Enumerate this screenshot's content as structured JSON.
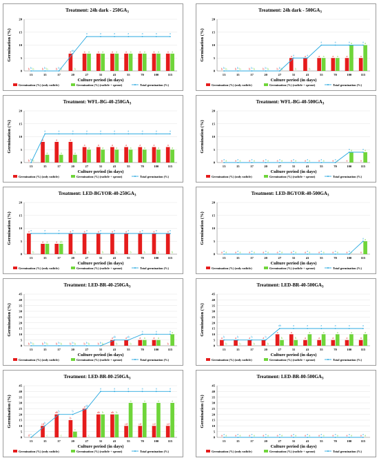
{
  "legend": [
    "Germination (%) (only radicle)",
    "Germination (%) (radicle + sprout)",
    "Total germination (%)"
  ],
  "colors": {
    "radicle": "#e51c1c",
    "sprout": "#6fd53a",
    "total": "#2aa9e0"
  },
  "chart_data": [
    {
      "type": "bar",
      "title": "Treatment: 24h dark - 250GA3",
      "xlabel": "Culture period (in days)",
      "ylabel": "Germination (%)",
      "ylim": [
        0,
        20
      ],
      "yticks": [
        0,
        5,
        10,
        15,
        20
      ],
      "categories": [
        "13",
        "15",
        "17",
        "20",
        "27",
        "31",
        "41",
        "55",
        "70",
        "100",
        "115"
      ],
      "series": [
        {
          "name": "Germination (%) (only radicle)",
          "values": [
            0,
            0,
            0,
            6.7,
            6.7,
            6.7,
            6.7,
            6.7,
            6.7,
            6.7,
            6.7
          ]
        },
        {
          "name": "Germination (%) (radicle + sprout)",
          "values": [
            0,
            0,
            0,
            0,
            6.7,
            6.7,
            6.7,
            6.7,
            6.7,
            6.7,
            6.7
          ]
        },
        {
          "name": "Total germination (%)",
          "values": [
            0,
            0,
            0,
            6.7,
            13.3,
            13.3,
            13.3,
            13.3,
            13.3,
            13.3,
            13.3
          ]
        }
      ],
      "labels_radicle": [
        "b",
        "b",
        "b",
        "a",
        "a",
        "a",
        "a",
        "a",
        "a",
        "a",
        "a"
      ],
      "labels_sprout": [
        "b",
        "b",
        "b",
        "b",
        "a",
        "a",
        "a",
        "a",
        "a",
        "a",
        "a"
      ],
      "labels_total": [
        "b",
        "b",
        "b",
        "ab",
        "a",
        "a",
        "a",
        "a",
        "a",
        "a",
        "a"
      ]
    },
    {
      "type": "bar",
      "title": "Treatment: 24h dark - 500GA3",
      "xlabel": "Culture period (in days)",
      "ylabel": "Germination (%)",
      "ylim": [
        0,
        20
      ],
      "yticks": [
        0,
        5,
        10,
        15,
        20
      ],
      "categories": [
        "13",
        "15",
        "17",
        "20",
        "27",
        "31",
        "41",
        "55",
        "70",
        "100",
        "115"
      ],
      "series": [
        {
          "name": "Germination (%) (only radicle)",
          "values": [
            0,
            0,
            0,
            0,
            0,
            5,
            5,
            5,
            5,
            5,
            5
          ]
        },
        {
          "name": "Germination (%) (radicle + sprout)",
          "values": [
            0,
            0,
            0,
            0,
            0,
            0,
            0,
            5,
            5,
            10,
            10
          ]
        },
        {
          "name": "Total germination (%)",
          "values": [
            0,
            0,
            0,
            0,
            0,
            5,
            5,
            10,
            10,
            10,
            10
          ]
        }
      ],
      "labels_radicle": [
        "b",
        "b",
        "b",
        "b",
        "b",
        "a",
        "a",
        "a",
        "a",
        "a",
        "a"
      ],
      "labels_sprout": [
        "b",
        "b",
        "b",
        "b",
        "b",
        "b",
        "b",
        "a",
        "a",
        "a",
        "a"
      ],
      "labels_total": [
        "b",
        "b",
        "b",
        "b",
        "b",
        "a",
        "a",
        "a",
        "a",
        "a",
        "a"
      ]
    },
    {
      "type": "bar",
      "title": "Treatment: WFL-BG-40-250GA3",
      "xlabel": "Culture period (in days)",
      "ylabel": "Germination (%)",
      "ylim": [
        0,
        20
      ],
      "yticks": [
        0,
        5,
        10,
        15,
        20
      ],
      "categories": [
        "13",
        "15",
        "17",
        "20",
        "27",
        "31",
        "41",
        "55",
        "70",
        "100",
        "115"
      ],
      "series": [
        {
          "name": "Germination (%) (only radicle)",
          "values": [
            0,
            8,
            8,
            8,
            6,
            6,
            6,
            6,
            6,
            6,
            6
          ]
        },
        {
          "name": "Germination (%) (radicle + sprout)",
          "values": [
            0,
            3,
            3,
            3,
            5,
            5,
            5,
            5,
            5,
            5,
            5
          ]
        },
        {
          "name": "Total germination (%)",
          "values": [
            0,
            11.1,
            11.1,
            11.1,
            11.1,
            11.1,
            11.1,
            11.1,
            11.1,
            11.1,
            11.1
          ]
        }
      ],
      "labels_radicle": [
        "b",
        "a",
        "a",
        "a",
        "a",
        "a",
        "a",
        "a",
        "a",
        "a",
        "a"
      ],
      "labels_sprout": [
        "b",
        "a",
        "a",
        "a",
        "a",
        "a",
        "a",
        "a",
        "a",
        "a",
        "a"
      ],
      "labels_total": [
        "b",
        "a",
        "a",
        "a",
        "a",
        "a",
        "a",
        "a",
        "a",
        "a",
        "a"
      ]
    },
    {
      "type": "bar",
      "title": "Treatment: WFL-BG-40-500GA3",
      "xlabel": "Culture period (in days)",
      "ylabel": "Germination (%)",
      "ylim": [
        0,
        20
      ],
      "yticks": [
        0,
        5,
        10,
        15,
        20
      ],
      "categories": [
        "13",
        "15",
        "17",
        "20",
        "27",
        "31",
        "41",
        "55",
        "70",
        "100",
        "115"
      ],
      "series": [
        {
          "name": "Germination (%) (only radicle)",
          "values": [
            0,
            0,
            0,
            0,
            0,
            0,
            0,
            0,
            0,
            0,
            0
          ]
        },
        {
          "name": "Germination (%) (radicle + sprout)",
          "values": [
            0,
            0,
            0,
            0,
            0,
            0,
            0,
            0,
            0,
            4,
            4
          ]
        },
        {
          "name": "Total germination (%)",
          "values": [
            0,
            0,
            0,
            0,
            0,
            0,
            0,
            0,
            0,
            4,
            4
          ]
        }
      ],
      "labels_radicle": [
        "a",
        "a",
        "a",
        "a",
        "a",
        "a",
        "a",
        "a",
        "a",
        "a",
        "a"
      ],
      "labels_sprout": [
        "a",
        "a",
        "a",
        "a",
        "a",
        "a",
        "a",
        "a",
        "a",
        "a",
        "a"
      ],
      "labels_total": [
        "a",
        "a",
        "a",
        "a",
        "a",
        "a",
        "a",
        "a",
        "a",
        "a",
        "a"
      ]
    },
    {
      "type": "bar",
      "title": "Treatment: LED-BGYOR-40-250GA3",
      "xlabel": "Culture period (in days)",
      "ylabel": "Germination (%)",
      "ylim": [
        0,
        20
      ],
      "yticks": [
        0,
        5,
        10,
        15,
        20
      ],
      "categories": [
        "13",
        "15",
        "17",
        "20",
        "27",
        "31",
        "41",
        "55",
        "70",
        "100",
        "115"
      ],
      "series": [
        {
          "name": "Germination (%) (only radicle)",
          "values": [
            8,
            4,
            4,
            8,
            8,
            8,
            8,
            8,
            8,
            8,
            8
          ]
        },
        {
          "name": "Germination (%) (radicle + sprout)",
          "values": [
            0,
            4,
            4,
            0,
            0,
            0,
            0,
            0,
            0,
            0,
            0
          ]
        },
        {
          "name": "Total germination (%)",
          "values": [
            8,
            8,
            8,
            8,
            8,
            8,
            8,
            8,
            8,
            8,
            8
          ]
        }
      ],
      "labels_radicle": [
        "a",
        "a",
        "a",
        "a",
        "a",
        "a",
        "a",
        "a",
        "a",
        "a",
        "a"
      ],
      "labels_sprout": [
        "b",
        "a",
        "ab",
        "b",
        "b",
        "b",
        "b",
        "b",
        "b",
        "b",
        "b"
      ],
      "labels_total": [
        "a",
        "a",
        "a",
        "a",
        "a",
        "a",
        "a",
        "a",
        "a",
        "a",
        "a"
      ]
    },
    {
      "type": "bar",
      "title": "Treatment: LED-BGYOR-40-500GA3",
      "xlabel": "Culture period (in days)",
      "ylabel": "Germination (%)",
      "ylim": [
        0,
        20
      ],
      "yticks": [
        0,
        5,
        10,
        15,
        20
      ],
      "categories": [
        "13",
        "15",
        "17",
        "20",
        "27",
        "31",
        "41",
        "55",
        "70",
        "100",
        "115"
      ],
      "series": [
        {
          "name": "Germination (%) (only radicle)",
          "values": [
            0,
            0,
            0,
            0,
            0,
            0,
            0,
            0,
            0,
            0,
            0
          ]
        },
        {
          "name": "Germination (%) (radicle + sprout)",
          "values": [
            0,
            0,
            0,
            0,
            0,
            0,
            0,
            0,
            0,
            0,
            5
          ]
        },
        {
          "name": "Total germination (%)",
          "values": [
            0,
            0,
            0,
            0,
            0,
            0,
            0,
            0,
            0,
            0,
            5
          ]
        }
      ],
      "labels_radicle": [
        "a",
        "a",
        "a",
        "a",
        "a",
        "a",
        "a",
        "a",
        "a",
        "a",
        "a"
      ],
      "labels_sprout": [
        "a",
        "a",
        "a",
        "a",
        "a",
        "a",
        "a",
        "a",
        "a",
        "a",
        "a"
      ],
      "labels_total": [
        "a",
        "a",
        "a",
        "a",
        "a",
        "a",
        "a",
        "a",
        "a",
        "a",
        "a"
      ]
    },
    {
      "type": "bar",
      "title": "Treatment: LED-BR-40-250GA3",
      "xlabel": "Culture period (in days)",
      "ylabel": "Germination (%)",
      "ylim": [
        0,
        45
      ],
      "yticks": [
        0,
        5,
        10,
        15,
        20,
        25,
        30,
        35,
        40,
        45
      ],
      "categories": [
        "13",
        "15",
        "17",
        "20",
        "27",
        "31",
        "41",
        "55",
        "70",
        "100",
        "115"
      ],
      "series": [
        {
          "name": "Germination (%) (only radicle)",
          "values": [
            0,
            0,
            0,
            0,
            0,
            0,
            5,
            5,
            5,
            5,
            0
          ]
        },
        {
          "name": "Germination (%) (radicle + sprout)",
          "values": [
            0,
            0,
            0,
            0,
            0,
            0,
            0,
            0,
            5,
            5,
            10
          ]
        },
        {
          "name": "Total germination (%)",
          "values": [
            0,
            0,
            0,
            0,
            0,
            0,
            5,
            5,
            10,
            10,
            10
          ]
        }
      ],
      "labels_radicle": [
        "b",
        "b",
        "b",
        "b",
        "b",
        "b",
        "a",
        "a",
        "a",
        "a",
        "b"
      ],
      "labels_sprout": [
        "b",
        "b",
        "b",
        "b",
        "b",
        "b",
        "b",
        "b",
        "a",
        "a",
        "a"
      ],
      "labels_total": [
        "b",
        "b",
        "b",
        "b",
        "b",
        "b",
        "ab",
        "ab",
        "a",
        "a",
        "a"
      ]
    },
    {
      "type": "bar",
      "title": "Treatment: LED-BR-40-500GA3",
      "xlabel": "Culture period (in days)",
      "ylabel": "Germination (%)",
      "ylim": [
        0,
        45
      ],
      "yticks": [
        0,
        5,
        10,
        15,
        20,
        25,
        30,
        35,
        40,
        45
      ],
      "categories": [
        "13",
        "15",
        "17",
        "20",
        "27",
        "31",
        "41",
        "55",
        "70",
        "100",
        "115"
      ],
      "series": [
        {
          "name": "Germination (%) (only radicle)",
          "values": [
            5,
            5,
            5,
            5,
            10,
            10,
            5,
            5,
            5,
            5,
            5
          ]
        },
        {
          "name": "Germination (%) (radicle + sprout)",
          "values": [
            0,
            0,
            0,
            0,
            5,
            5,
            10,
            10,
            10,
            10,
            10
          ]
        },
        {
          "name": "Total germination (%)",
          "values": [
            5,
            5,
            5,
            5,
            15,
            15,
            15,
            15,
            15,
            15,
            15
          ]
        }
      ],
      "labels_radicle": [
        "a",
        "a",
        "a",
        "a",
        "a",
        "a",
        "a",
        "a",
        "a",
        "a",
        "a"
      ],
      "labels_sprout": [
        "b",
        "b",
        "b",
        "b",
        "b",
        "b",
        "a",
        "a",
        "a",
        "a",
        "a"
      ],
      "labels_total": [
        "b",
        "b",
        "b",
        "b",
        "ab",
        "a",
        "a",
        "a",
        "a",
        "a",
        "a"
      ]
    },
    {
      "type": "bar",
      "title": "Treatment: LED-BR-80-250GA3",
      "xlabel": "Culture period (in days)",
      "ylabel": "Germination (%)",
      "ylim": [
        0,
        45
      ],
      "yticks": [
        0,
        5,
        10,
        15,
        20,
        25,
        30,
        35,
        40,
        45
      ],
      "categories": [
        "13",
        "15",
        "17",
        "20",
        "27",
        "31",
        "41",
        "55",
        "70",
        "100",
        "115"
      ],
      "series": [
        {
          "name": "Germination (%) (only radicle)",
          "values": [
            0,
            10,
            20,
            15,
            25,
            20,
            20,
            10,
            10,
            10,
            10
          ]
        },
        {
          "name": "Germination (%) (radicle + sprout)",
          "values": [
            0,
            0,
            0,
            5,
            0,
            20,
            20,
            30,
            30,
            30,
            30
          ]
        },
        {
          "name": "Total germination (%)",
          "values": [
            0,
            10,
            20,
            20,
            25,
            40,
            40,
            40,
            40,
            40,
            40
          ]
        }
      ],
      "labels_radicle": [
        "d",
        "cd",
        "ab",
        "b",
        "a",
        "ab",
        "ab",
        "cd",
        "cd",
        "cd",
        "cd"
      ],
      "labels_sprout": [
        "c",
        "c",
        "c",
        "c",
        "c",
        "b",
        "b",
        "a",
        "a",
        "a",
        "a"
      ],
      "labels_total": [
        "c",
        "b",
        "b",
        "b",
        "ab",
        "a",
        "a",
        "a",
        "a",
        "a",
        "a"
      ]
    },
    {
      "type": "bar",
      "title": "Treatment: LED-BR-80-500GA3",
      "xlabel": "Culture period (in days)",
      "ylabel": "Germination (%)",
      "ylim": [
        0,
        45
      ],
      "yticks": [
        0,
        5,
        10,
        15,
        20,
        25,
        30,
        35,
        40,
        45
      ],
      "categories": [
        "13",
        "15",
        "17",
        "20",
        "27",
        "31",
        "41",
        "55",
        "70",
        "100",
        "115"
      ],
      "series": [
        {
          "name": "Germination (%) (only radicle)",
          "values": [
            0,
            0,
            0,
            0,
            0,
            0,
            0,
            0,
            0,
            0,
            0
          ]
        },
        {
          "name": "Germination (%) (radicle + sprout)",
          "values": [
            0,
            0,
            0,
            0,
            0,
            0,
            0,
            0,
            0,
            0,
            0
          ]
        },
        {
          "name": "Total germination (%)",
          "values": [
            0,
            0,
            0,
            0,
            0,
            0,
            0,
            0,
            0,
            0,
            0
          ]
        }
      ],
      "labels_radicle": [
        "a",
        "a",
        "a",
        "a",
        "a",
        "a",
        "a",
        "a",
        "a",
        "a",
        "a"
      ],
      "labels_sprout": [
        "a",
        "a",
        "a",
        "a",
        "a",
        "a",
        "a",
        "a",
        "a",
        "a",
        "a"
      ],
      "labels_total": [
        "a",
        "a",
        "a",
        "a",
        "a",
        "a",
        "a",
        "a",
        "a",
        "a",
        "a"
      ]
    }
  ]
}
